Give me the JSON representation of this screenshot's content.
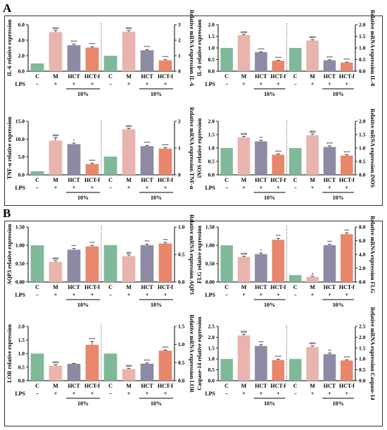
{
  "panels": [
    {
      "letter": "A"
    },
    {
      "letter": "B"
    }
  ],
  "colors": {
    "C": "#7fb99a",
    "M": "#e9b4ad",
    "HCT": "#8f8aa3",
    "HCT-f": "#e8876b"
  },
  "lps_label": "LPS",
  "percent_label": "10%",
  "categories": [
    "C",
    "M",
    "HCT",
    "HCT-f"
  ],
  "lps_signs": [
    "−",
    "+",
    "+",
    "+"
  ],
  "chart_data": [
    {
      "type": "bar",
      "panel": "A",
      "left": {
        "ylabel": "IL-6 relative expression",
        "ylim": [
          0,
          6
        ],
        "ticks": [
          "0.0",
          "2.0",
          "4.0",
          "6.0"
        ],
        "values": [
          1.0,
          5.05,
          3.35,
          3.05
        ],
        "errors": [
          0,
          0.2,
          0.15,
          0.12
        ],
        "annotations": [
          "",
          "####",
          "****",
          "****"
        ]
      },
      "right": {
        "ylabel": "Relative mRNA expression IL-6",
        "ylim": [
          0,
          3
        ],
        "ticks": [
          "0",
          "1",
          "2",
          "3"
        ],
        "values": [
          1.0,
          2.55,
          1.35,
          0.7
        ],
        "errors": [
          0,
          0.06,
          0.05,
          0.04
        ],
        "annotations": [
          "",
          "####",
          "****",
          "****"
        ]
      }
    },
    {
      "type": "bar",
      "panel": "A",
      "left": {
        "ylabel": "IL-8 relative expression",
        "ylim": [
          0,
          2
        ],
        "ticks": [
          "0.0",
          "0.5",
          "1.0",
          "1.5",
          "2.0"
        ],
        "values": [
          1.0,
          1.55,
          0.82,
          0.45
        ],
        "errors": [
          0,
          0.03,
          0.02,
          0.02
        ],
        "annotations": [
          "",
          "####",
          "****",
          "****"
        ]
      },
      "right": {
        "ylabel": "Relative mRNA expression IL-8",
        "ylim": [
          0,
          2
        ],
        "ticks": [
          "0.0",
          "0.5",
          "1.0",
          "1.5",
          "2.0"
        ],
        "values": [
          1.0,
          1.32,
          0.47,
          0.37
        ],
        "errors": [
          0,
          0.04,
          0.02,
          0.02
        ],
        "annotations": [
          "",
          "####",
          "****",
          "****"
        ]
      }
    },
    {
      "type": "bar",
      "panel": "A",
      "left": {
        "ylabel": "TNF-α relative expression",
        "ylim": [
          0,
          15
        ],
        "ticks": [
          "0.0",
          "5.0",
          "10.0",
          "15.0"
        ],
        "values": [
          1.0,
          9.6,
          8.6,
          3.0
        ],
        "errors": [
          0,
          0.8,
          0.3,
          0.25
        ],
        "annotations": [
          "",
          "####",
          "*",
          "****"
        ]
      },
      "right": {
        "ylabel": "Relative mRNA expression TNF-α",
        "ylim": [
          0,
          2
        ],
        "ticks": [
          "0",
          "1",
          "2"
        ],
        "values": [
          0.68,
          1.7,
          1.07,
          0.98
        ],
        "errors": [
          0,
          0.03,
          0.03,
          0.03
        ],
        "annotations": [
          "",
          "####",
          "****",
          "****"
        ]
      }
    },
    {
      "type": "bar",
      "panel": "A",
      "left": {
        "ylabel": "iNOS relative expression",
        "ylim": [
          0,
          2
        ],
        "ticks": [
          "0.0",
          "0.5",
          "1.0",
          "1.5",
          "2.0"
        ],
        "values": [
          1.0,
          1.4,
          1.25,
          0.75
        ],
        "errors": [
          0,
          0.04,
          0.04,
          0.03
        ],
        "annotations": [
          "",
          "####",
          "**",
          "****"
        ]
      },
      "right": {
        "ylabel": "Relative mRNA expression iNOS",
        "ylim": [
          0,
          2
        ],
        "ticks": [
          "0.0",
          "0.5",
          "1.0",
          "1.5",
          "2.0"
        ],
        "values": [
          1.0,
          1.48,
          1.04,
          0.72
        ],
        "errors": [
          0,
          0.05,
          0.04,
          0.03
        ],
        "annotations": [
          "",
          "####",
          "****",
          "****"
        ]
      }
    },
    {
      "type": "bar",
      "panel": "B",
      "left": {
        "ylabel": "AQP3 relative expression",
        "ylim": [
          0,
          1.5
        ],
        "ticks": [
          "0.00",
          "0.50",
          "1.00",
          "1.50"
        ],
        "values": [
          1.0,
          0.55,
          0.88,
          0.97
        ],
        "errors": [
          0,
          0.03,
          0.03,
          0.03
        ],
        "annotations": [
          "",
          "####",
          "***",
          "***"
        ]
      },
      "right": {
        "ylabel": "Relative mRNA expression AQP3",
        "ylim": [
          0,
          1.0
        ],
        "ticks": [
          "0.0",
          "0.5",
          "1.0"
        ],
        "values": [
          0.67,
          0.47,
          0.67,
          0.7
        ],
        "errors": [
          0,
          0.02,
          0.02,
          0.02
        ],
        "annotations": [
          "",
          "###",
          "***",
          "***"
        ]
      }
    },
    {
      "type": "bar",
      "panel": "B",
      "left": {
        "ylabel": "FLG relative expression",
        "ylim": [
          0,
          1.5
        ],
        "ticks": [
          "0.00",
          "0.50",
          "1.00",
          "1.50"
        ],
        "values": [
          1.0,
          0.68,
          0.76,
          1.15
        ],
        "errors": [
          0,
          0.02,
          0.03,
          0.04
        ],
        "annotations": [
          "",
          "####",
          "*",
          "***"
        ]
      },
      "right": {
        "ylabel": "Relative mRNA expression FLG",
        "ylim": [
          0,
          8.0
        ],
        "ticks": [
          "0.0",
          "2.0",
          "4.0",
          "6.0",
          "8.0"
        ],
        "values": [
          1.0,
          0.75,
          5.35,
          6.95
        ],
        "errors": [
          0,
          0.08,
          0.12,
          0.2
        ],
        "annotations": [
          "",
          "#",
          "***",
          "***"
        ]
      }
    },
    {
      "type": "bar",
      "panel": "B",
      "left": {
        "ylabel": "LOR relative expression",
        "ylim": [
          0,
          2.0
        ],
        "ticks": [
          "0.0",
          "0.5",
          "1.0",
          "1.5",
          "2.0"
        ],
        "values": [
          1.0,
          0.55,
          0.62,
          1.32
        ],
        "errors": [
          0,
          0.03,
          0.02,
          0.12
        ],
        "annotations": [
          "",
          "####",
          "",
          "****"
        ]
      },
      "right": {
        "ylabel": "Relative mRNA expression LOR",
        "ylim": [
          0,
          1.5
        ],
        "ticks": [
          "0.0",
          "0.5",
          "1.0",
          "1.5"
        ],
        "values": [
          0.75,
          0.32,
          0.47,
          0.83
        ],
        "errors": [
          0,
          0.02,
          0.02,
          0.02
        ],
        "annotations": [
          "",
          "####",
          "****",
          "****"
        ]
      }
    },
    {
      "type": "bar",
      "panel": "B",
      "left": {
        "ylabel": "Caspase-14 relative expression",
        "ylim": [
          0,
          2.5
        ],
        "ticks": [
          "0.0",
          "0.5",
          "1.0",
          "1.5",
          "2.0",
          "2.5"
        ],
        "values": [
          1.0,
          2.08,
          1.6,
          0.95
        ],
        "errors": [
          0,
          0.06,
          0.06,
          0.04
        ],
        "annotations": [
          "",
          "####",
          "***",
          "****"
        ]
      },
      "right": {
        "ylabel": "Relative mRNA expression Caspase-14",
        "ylim": [
          0,
          2.5
        ],
        "ticks": [
          "0.0",
          "0.5",
          "1.0",
          "1.5",
          "2.0",
          "2.5"
        ],
        "values": [
          1.0,
          1.55,
          1.22,
          0.93
        ],
        "errors": [
          0,
          0.05,
          0.05,
          0.03
        ],
        "annotations": [
          "",
          "####",
          "**",
          "****"
        ]
      }
    }
  ]
}
